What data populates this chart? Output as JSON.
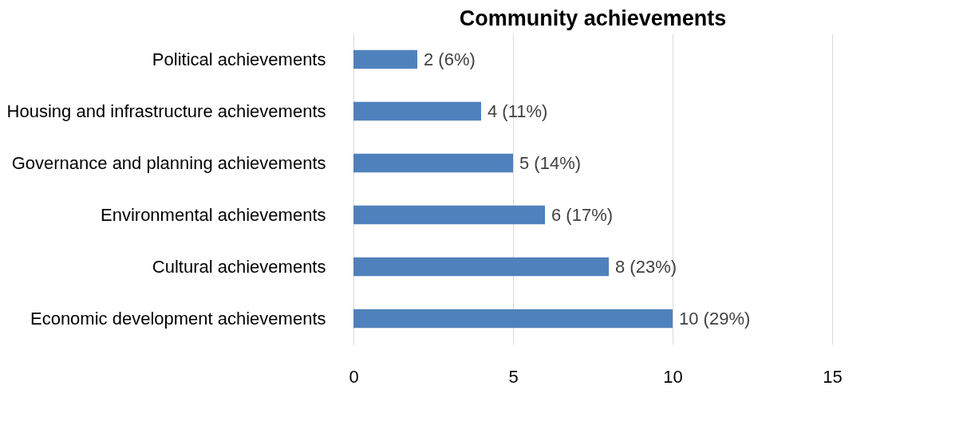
{
  "chart_data": {
    "type": "bar",
    "title": "Community achievements",
    "orientation": "horizontal",
    "categories": [
      "Political achievements",
      "Housing and infrastructure achievements",
      "Governance and planning achievements",
      "Environmental achievements",
      "Cultural achievements",
      "Economic development achievements"
    ],
    "values": [
      2,
      4,
      5,
      6,
      8,
      10
    ],
    "value_labels": [
      "2 (6%)",
      "4 (11%)",
      "5 (14%)",
      "6 (17%)",
      "8 (23%)",
      "10 (29%)"
    ],
    "color": "#4f81bd",
    "xlim": [
      0,
      15
    ],
    "xticks": [
      0,
      5,
      10,
      15
    ],
    "grid": "x"
  }
}
